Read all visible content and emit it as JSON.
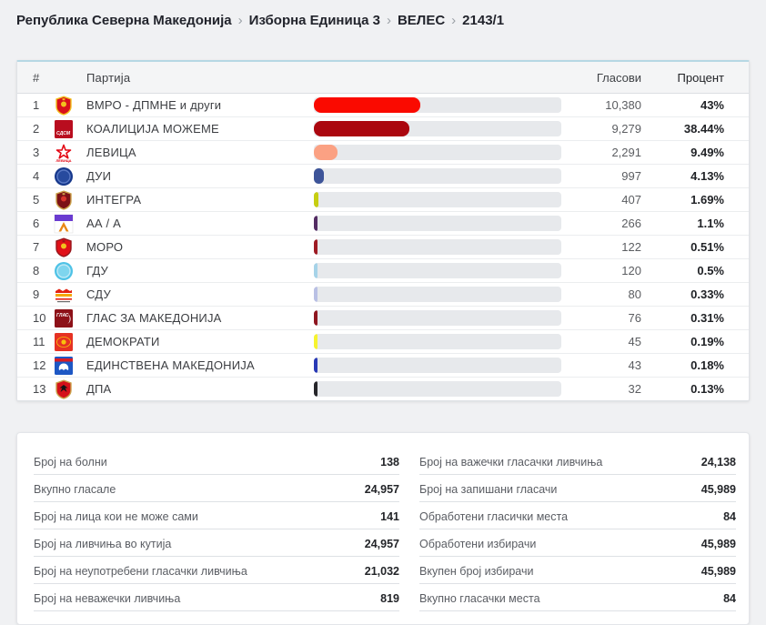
{
  "breadcrumb": {
    "separator": "›",
    "items": [
      "Република Северна Македонија",
      "Изборна Единица 3",
      "ВЕЛЕС",
      "2143/1"
    ]
  },
  "results_table": {
    "columns": {
      "rank": "#",
      "party": "Партија",
      "votes": "Гласови",
      "percent": "Процент"
    },
    "rows": [
      {
        "rank": "1",
        "party": "ВМРО - ДПМНЕ и други",
        "votes": "10,380",
        "percent": "43%",
        "percent_value": 43,
        "bar_color": "#fa0a00",
        "logo": {
          "icon_name": "vmro-dpmne-logo",
          "kind": "shield",
          "bg": "#d8101c",
          "border": "#f2c01e",
          "inner": "#f2c01e"
        }
      },
      {
        "rank": "2",
        "party": "КОАЛИЦИЈА МОЖЕМЕ",
        "votes": "9,279",
        "percent": "38.44%",
        "percent_value": 38.44,
        "bar_color": "#ab070f",
        "logo": {
          "icon_name": "sdsm-logo",
          "kind": "square",
          "bg": "#b90d1f",
          "text": "СДСМ",
          "text_color": "#ffffff"
        }
      },
      {
        "rank": "3",
        "party": "ЛЕВИЦА",
        "votes": "2,291",
        "percent": "9.49%",
        "percent_value": 9.49,
        "bar_color": "#fba183",
        "logo": {
          "icon_name": "levica-logo",
          "kind": "star",
          "bg": "#ffffff",
          "star": "#e30613",
          "text": "ЛЕВИЦА",
          "text_color": "#e30613"
        }
      },
      {
        "rank": "4",
        "party": "ДУИ",
        "votes": "997",
        "percent": "4.13%",
        "percent_value": 4.13,
        "bar_color": "#3d5499",
        "logo": {
          "icon_name": "dui-logo",
          "kind": "circle",
          "bg": "#16388c",
          "ring": "#5a79c4",
          "center": "#274a9e"
        }
      },
      {
        "rank": "5",
        "party": "ИНТЕГРА",
        "votes": "407",
        "percent": "1.69%",
        "percent_value": 1.69,
        "bar_color": "#c6ce12",
        "logo": {
          "icon_name": "integra-logo",
          "kind": "shield",
          "bg": "#7c1116",
          "border": "#caa24a",
          "inner": "#d8342c"
        }
      },
      {
        "rank": "6",
        "party": "АА / А",
        "votes": "266",
        "percent": "1.1%",
        "percent_value": 1.1,
        "bar_color": "#532c63",
        "logo": {
          "icon_name": "aa-a-logo",
          "kind": "split",
          "top": "#6a3bd0",
          "bottom": "#ffffff",
          "letter": "А",
          "letter_color": "#e88714"
        }
      },
      {
        "rank": "7",
        "party": "МОРО",
        "votes": "122",
        "percent": "0.51%",
        "percent_value": 0.51,
        "bar_color": "#9e1b24",
        "logo": {
          "icon_name": "moro-logo",
          "kind": "shield",
          "bg": "#e01018",
          "border": "#97151b",
          "inner": "#f2c01e"
        }
      },
      {
        "rank": "8",
        "party": "ГДУ",
        "votes": "120",
        "percent": "0.5%",
        "percent_value": 0.5,
        "bar_color": "#a6d3e8",
        "logo": {
          "icon_name": "gdu-logo",
          "kind": "circle",
          "bg": "#4ec2e6",
          "ring": "#bfe9f6",
          "center": "#7ed5ee"
        }
      },
      {
        "rank": "9",
        "party": "СДУ",
        "votes": "80",
        "percent": "0.33%",
        "percent_value": 0.33,
        "bar_color": "#b9c0e4",
        "logo": {
          "icon_name": "sdu-logo",
          "kind": "emblem",
          "bg": "#ffffff",
          "c1": "#e32213",
          "c2": "#f5a80c"
        }
      },
      {
        "rank": "10",
        "party": "ГЛАС ЗА МАКЕДОНИЈА",
        "votes": "76",
        "percent": "0.31%",
        "percent_value": 0.31,
        "bar_color": "#8e1620",
        "logo": {
          "icon_name": "glas-za-makedonija-logo",
          "kind": "square",
          "bg": "#8d1118",
          "text": "ГЛАС",
          "text_color": "#ffffff",
          "crescent": "#ffffff"
        }
      },
      {
        "rank": "11",
        "party": "ДЕМОКРАТИ",
        "votes": "45",
        "percent": "0.19%",
        "percent_value": 0.19,
        "bar_color": "#f6f32f",
        "logo": {
          "icon_name": "demokrati-logo",
          "kind": "square",
          "bg": "#e63223",
          "flame": "#f8c30c"
        }
      },
      {
        "rank": "12",
        "party": "ЕДИНСТВЕНА МАКЕДОНИЈА",
        "votes": "43",
        "percent": "0.18%",
        "percent_value": 0.18,
        "bar_color": "#2839b5",
        "logo": {
          "icon_name": "edinstvena-makedonija-logo",
          "kind": "square",
          "bg": "#1d57c4",
          "stripe": "#d81c24",
          "lion": "#ffffff"
        }
      },
      {
        "rank": "13",
        "party": "ДПА",
        "votes": "32",
        "percent": "0.13%",
        "percent_value": 0.13,
        "bar_color": "#26262a",
        "logo": {
          "icon_name": "dpa-logo",
          "kind": "shield",
          "bg": "#d41119",
          "border": "#caa24a",
          "eagle": "#151515"
        }
      }
    ]
  },
  "summary": {
    "left": [
      {
        "label": "Број на болни",
        "value": "138"
      },
      {
        "label": "Вкупно гласале",
        "value": "24,957"
      },
      {
        "label": "Број на лица кои не може сами",
        "value": "141"
      },
      {
        "label": "Број на ливчиња во кутија",
        "value": "24,957"
      },
      {
        "label": "Број на неупотребени гласачки ливчиња",
        "value": "21,032"
      },
      {
        "label": "Број на неважечки ливчиња",
        "value": "819"
      }
    ],
    "right": [
      {
        "label": "Број на важечки гласачки ливчиња",
        "value": "24,138"
      },
      {
        "label": "Број на запишани гласачи",
        "value": "45,989"
      },
      {
        "label": "Обработени гласички места",
        "value": "84"
      },
      {
        "label": "Обработени избирачи",
        "value": "45,989"
      },
      {
        "label": "Вкупен број избирачи",
        "value": "45,989"
      },
      {
        "label": "Вкупно гласачки места",
        "value": "84"
      }
    ]
  }
}
